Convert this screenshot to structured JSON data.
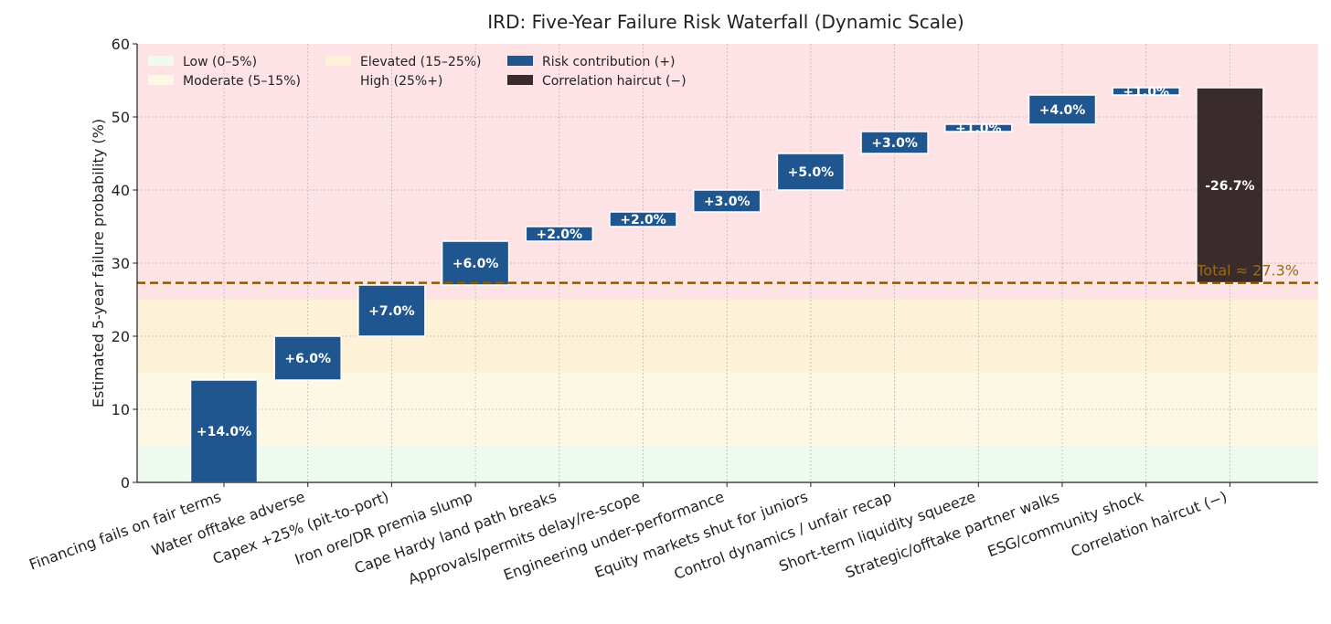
{
  "chart_data": {
    "type": "bar",
    "subtype": "waterfall",
    "title": "IRD: Five-Year Failure Risk Waterfall (Dynamic Scale)",
    "xlabel": "",
    "ylabel": "Estimated 5-year failure probability (%)",
    "ylim": [
      0,
      60
    ],
    "yticks": [
      0,
      10,
      20,
      30,
      40,
      50,
      60
    ],
    "grid": true,
    "legend_position": "top-left",
    "categories": [
      "Financing fails on fair terms",
      "Water offtake adverse",
      "Capex +25% (pit-to-port)",
      "Iron ore/DR premia slump",
      "Cape Hardy land path breaks",
      "Approvals/permits delay/re-scope",
      "Engineering under-performance",
      "Equity markets shut for juniors",
      "Control dynamics / unfair recap",
      "Short-term liquidity squeeze",
      "Strategic/offtake partner walks",
      "ESG/community shock",
      "Correlation haircut (−)"
    ],
    "values": [
      14.0,
      6.0,
      7.0,
      6.0,
      2.0,
      2.0,
      3.0,
      5.0,
      3.0,
      1.0,
      4.0,
      1.0,
      -26.7
    ],
    "bar_labels": [
      "+14.0%",
      "+6.0%",
      "+7.0%",
      "+6.0%",
      "+2.0%",
      "+2.0%",
      "+3.0%",
      "+5.0%",
      "+3.0%",
      "+1.0%",
      "+4.0%",
      "+1.0%",
      "-26.7%"
    ],
    "total": 27.3,
    "total_label": "Total ≈ 27.3%",
    "bands": [
      {
        "name": "Low (0–5%)",
        "from": 0,
        "to": 5,
        "color": "#eefaee"
      },
      {
        "name": "Moderate (5–15%)",
        "from": 5,
        "to": 15,
        "color": "#fdf8e4"
      },
      {
        "name": "Elevated (15–25%)",
        "from": 15,
        "to": 25,
        "color": "#fdf1d8"
      },
      {
        "name": "High (25%+)",
        "from": 25,
        "to": 60,
        "color": "#fde3e6"
      }
    ],
    "series": [
      {
        "name": "Risk contribution (+)",
        "color": "#1f5690"
      },
      {
        "name": "Correlation haircut (−)",
        "color": "#3a2c2c"
      }
    ],
    "colors": {
      "positive": "#1f5690",
      "negative": "#3a2c2c",
      "total_line": "#8a5a00",
      "total_text": "#9a6a10"
    }
  }
}
